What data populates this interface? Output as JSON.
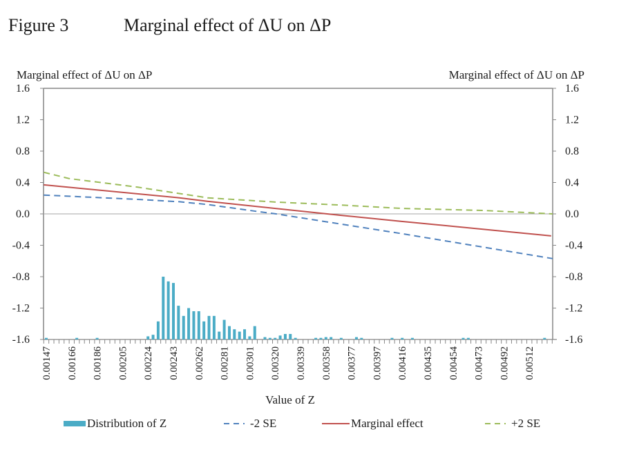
{
  "figure": {
    "number_label": "Figure 3",
    "title": "Marginal effect of ΔU on ΔP"
  },
  "colors": {
    "histogram": "#4bacc6",
    "minus_2se": "#4f81bd",
    "marginal_effect": "#c0504d",
    "plus_2se": "#9bbb59",
    "axis": "#868686",
    "zero_line": "#a6a6a6"
  },
  "legend": [
    {
      "key": "distribution",
      "label": "Distribution of Z",
      "style": "bar"
    },
    {
      "key": "minus_2se",
      "label": "-2 SE",
      "style": "dashed"
    },
    {
      "key": "marginal_effect",
      "label": "Marginal effect",
      "style": "solid"
    },
    {
      "key": "plus_2se",
      "label": "+2 SE",
      "style": "dashed"
    }
  ],
  "chart_data": {
    "type": "bar+line",
    "title": "Marginal effect of ΔU on ΔP",
    "xlabel": "Value of Z",
    "ylabel_left": "Marginal effect of ΔU on ΔP",
    "ylabel_right": "Marginal effect of ΔU on ΔP",
    "ylim": [
      -1.6,
      1.6
    ],
    "yticks": [
      "1.6",
      "1.2",
      "0.8",
      "0.4",
      "0.0",
      "-0.4",
      "-0.8",
      "-1.2",
      "-1.6"
    ],
    "ytick_values": [
      1.6,
      1.2,
      0.8,
      0.4,
      0.0,
      -0.4,
      -0.8,
      -1.2,
      -1.6
    ],
    "category_count": 100,
    "x_tick_labels": [
      "0.00147",
      "0.00166",
      "0.00186",
      "0.00205",
      "0.00224",
      "0.00243",
      "0.00262",
      "0.00281",
      "0.00301",
      "0.00320",
      "0.00339",
      "0.00358",
      "0.00377",
      "0.00397",
      "0.00416",
      "0.00435",
      "0.00454",
      "0.00473",
      "0.00492",
      "0.00512"
    ],
    "x_tick_label_every": 5,
    "grid": false,
    "zero_line": true,
    "legend_position": "bottom",
    "histogram": {
      "name": "Distribution of Z",
      "baseline": -1.6,
      "bars": [
        {
          "i": 0,
          "v": -1.58
        },
        {
          "i": 6,
          "v": -1.58
        },
        {
          "i": 10,
          "v": -1.58
        },
        {
          "i": 20,
          "v": -1.56
        },
        {
          "i": 21,
          "v": -1.54
        },
        {
          "i": 22,
          "v": -1.37
        },
        {
          "i": 23,
          "v": -0.8
        },
        {
          "i": 24,
          "v": -0.86
        },
        {
          "i": 25,
          "v": -0.88
        },
        {
          "i": 26,
          "v": -1.17
        },
        {
          "i": 27,
          "v": -1.3
        },
        {
          "i": 28,
          "v": -1.2
        },
        {
          "i": 29,
          "v": -1.24
        },
        {
          "i": 30,
          "v": -1.24
        },
        {
          "i": 31,
          "v": -1.37
        },
        {
          "i": 32,
          "v": -1.3
        },
        {
          "i": 33,
          "v": -1.3
        },
        {
          "i": 34,
          "v": -1.5
        },
        {
          "i": 35,
          "v": -1.35
        },
        {
          "i": 36,
          "v": -1.43
        },
        {
          "i": 37,
          "v": -1.47
        },
        {
          "i": 38,
          "v": -1.5
        },
        {
          "i": 39,
          "v": -1.47
        },
        {
          "i": 40,
          "v": -1.56
        },
        {
          "i": 41,
          "v": -1.43
        },
        {
          "i": 43,
          "v": -1.57
        },
        {
          "i": 44,
          "v": -1.58
        },
        {
          "i": 45,
          "v": -1.58
        },
        {
          "i": 46,
          "v": -1.55
        },
        {
          "i": 47,
          "v": -1.53
        },
        {
          "i": 48,
          "v": -1.53
        },
        {
          "i": 49,
          "v": -1.58
        },
        {
          "i": 53,
          "v": -1.58
        },
        {
          "i": 54,
          "v": -1.58
        },
        {
          "i": 55,
          "v": -1.57
        },
        {
          "i": 56,
          "v": -1.57
        },
        {
          "i": 58,
          "v": -1.58
        },
        {
          "i": 61,
          "v": -1.57
        },
        {
          "i": 62,
          "v": -1.58
        },
        {
          "i": 68,
          "v": -1.58
        },
        {
          "i": 70,
          "v": -1.58
        },
        {
          "i": 72,
          "v": -1.58
        },
        {
          "i": 82,
          "v": -1.58
        },
        {
          "i": 83,
          "v": -1.58
        },
        {
          "i": 98,
          "v": -1.58
        }
      ]
    },
    "series": [
      {
        "name": "-2 SE",
        "key": "minus_2se",
        "dash": true,
        "points": [
          [
            -0.5,
            0.24
          ],
          [
            18,
            0.185
          ],
          [
            31.7,
            0.12
          ],
          [
            26.2,
            0.155
          ],
          [
            42.3,
            0.024
          ],
          [
            45.2,
            0.0
          ],
          [
            69.7,
            -0.25
          ],
          [
            99.6,
            -0.57
          ]
        ]
      },
      {
        "name": "Marginal effect",
        "key": "marginal_effect",
        "dash": false,
        "points": [
          [
            -0.5,
            0.37
          ],
          [
            26.2,
            0.205
          ],
          [
            31.7,
            0.16
          ],
          [
            57.5,
            -0.015
          ],
          [
            69.7,
            -0.094
          ],
          [
            99.3,
            -0.28
          ]
        ]
      },
      {
        "name": "+2 SE",
        "key": "plus_2se",
        "dash": true,
        "points": [
          [
            -0.5,
            0.53
          ],
          [
            4.5,
            0.45
          ],
          [
            18,
            0.34
          ],
          [
            31.7,
            0.205
          ],
          [
            45.2,
            0.15
          ],
          [
            58.8,
            0.11
          ],
          [
            67,
            0.08
          ],
          [
            69.7,
            0.07
          ],
          [
            86,
            0.044
          ],
          [
            99.6,
            0.0
          ]
        ]
      }
    ]
  }
}
